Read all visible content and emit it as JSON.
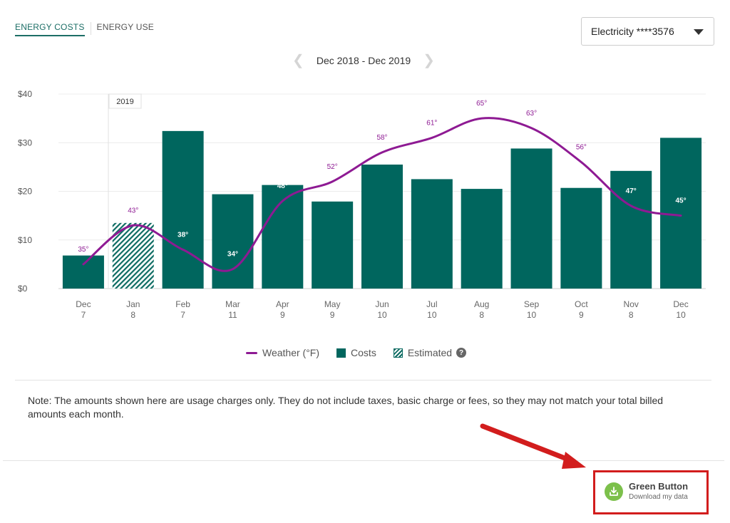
{
  "tabs": [
    {
      "label": "ENERGY COSTS",
      "active": true
    },
    {
      "label": "ENERGY USE",
      "active": false
    }
  ],
  "account_select": {
    "value": "Electricity ****3576"
  },
  "date_range": {
    "label": "Dec 2018 - Dec 2019"
  },
  "year_marker": "2019",
  "legend": {
    "weather": "Weather (°F)",
    "costs": "Costs",
    "estimated": "Estimated",
    "help": "?"
  },
  "note": "Note: The amounts shown here are usage charges only. They do not include taxes, basic charge or fees, so they may not match your total billed amounts each month.",
  "green_button": {
    "title": "Green Button",
    "subtitle": "Download my data"
  },
  "colors": {
    "cost_bar": "#00665e",
    "weather_line": "#8e1a93",
    "estimated_hatch": "#0c6b62",
    "annotation": "#d21d1d",
    "green_button_icon": "#7cc04b"
  },
  "chart_data": {
    "type": "bar",
    "categories": [
      "Dec",
      "Jan",
      "Feb",
      "Mar",
      "Apr",
      "May",
      "Jun",
      "Jul",
      "Aug",
      "Sep",
      "Oct",
      "Nov",
      "Dec"
    ],
    "category_sublabels": [
      "7",
      "8",
      "7",
      "11",
      "9",
      "9",
      "10",
      "10",
      "8",
      "10",
      "9",
      "8",
      "10"
    ],
    "series": [
      {
        "name": "Costs",
        "values": [
          6.8,
          13.5,
          32.4,
          19.4,
          21.3,
          17.9,
          25.5,
          22.5,
          20.5,
          28.8,
          20.7,
          24.2,
          31.0
        ],
        "estimated": [
          false,
          true,
          false,
          false,
          false,
          false,
          false,
          false,
          false,
          false,
          false,
          false,
          false
        ]
      },
      {
        "name": "Weather (°F)",
        "type": "line",
        "values": [
          35,
          43,
          38,
          34,
          48,
          52,
          58,
          61,
          65,
          63,
          56,
          47,
          45
        ],
        "value_labels": [
          "35°",
          "43°",
          "38°",
          "34°",
          "48°",
          "52°",
          "58°",
          "61°",
          "65°",
          "63°",
          "56°",
          "47°",
          "45°"
        ]
      }
    ],
    "y_ticks": [
      "$0",
      "$10",
      "$20",
      "$30",
      "$40"
    ],
    "ylim": [
      0,
      40
    ],
    "weather_range": [
      30,
      70
    ],
    "grid": true
  }
}
